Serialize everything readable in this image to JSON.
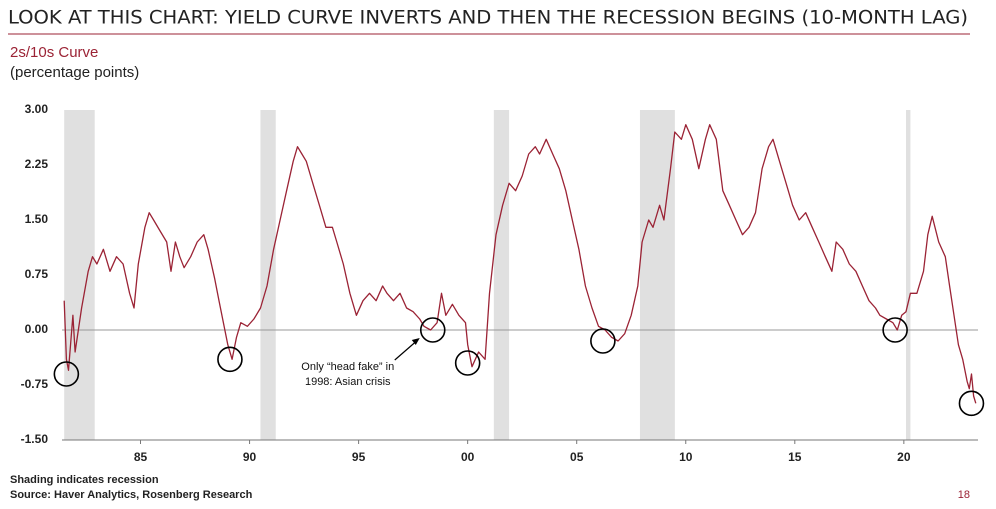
{
  "chart_data": {
    "type": "line",
    "title": "LOOK AT THIS CHART: YIELD CURVE INVERTS AND THEN THE RECESSION BEGINS (10-MONTH LAG)",
    "subtitle": "2s/10s Curve",
    "y_label": "(percentage points)",
    "x": [
      1981.5,
      1981.6,
      1981.7,
      1981.9,
      1982.0,
      1982.3,
      1982.6,
      1982.8,
      1983.0,
      1983.3,
      1983.6,
      1983.9,
      1984.2,
      1984.5,
      1984.7,
      1984.9,
      1985.2,
      1985.4,
      1985.6,
      1985.9,
      1986.2,
      1986.4,
      1986.6,
      1986.8,
      1987.0,
      1987.3,
      1987.6,
      1987.9,
      1988.1,
      1988.4,
      1988.6,
      1988.8,
      1989.0,
      1989.2,
      1989.4,
      1989.6,
      1989.9,
      1990.2,
      1990.5,
      1990.8,
      1991.1,
      1991.4,
      1991.7,
      1992.0,
      1992.2,
      1992.4,
      1992.6,
      1992.9,
      1993.2,
      1993.5,
      1993.8,
      1994.0,
      1994.3,
      1994.6,
      1994.9,
      1995.2,
      1995.5,
      1995.8,
      1996.1,
      1996.3,
      1996.6,
      1996.9,
      1997.2,
      1997.5,
      1997.8,
      1998.0,
      1998.3,
      1998.6,
      1998.8,
      1999.0,
      1999.3,
      1999.6,
      1999.9,
      2000.0,
      2000.2,
      2000.5,
      2000.8,
      2001.0,
      2001.3,
      2001.6,
      2001.9,
      2002.2,
      2002.5,
      2002.8,
      2003.1,
      2003.3,
      2003.6,
      2003.9,
      2004.2,
      2004.5,
      2004.8,
      2005.1,
      2005.4,
      2005.7,
      2006.0,
      2006.3,
      2006.6,
      2006.9,
      2007.2,
      2007.5,
      2007.8,
      2008.0,
      2008.3,
      2008.5,
      2008.8,
      2009.0,
      2009.3,
      2009.5,
      2009.8,
      2010.0,
      2010.3,
      2010.6,
      2010.9,
      2011.1,
      2011.4,
      2011.7,
      2012.0,
      2012.3,
      2012.6,
      2012.9,
      2013.2,
      2013.5,
      2013.8,
      2014.0,
      2014.3,
      2014.6,
      2014.9,
      2015.2,
      2015.5,
      2015.8,
      2016.1,
      2016.4,
      2016.7,
      2016.9,
      2017.2,
      2017.5,
      2017.8,
      2018.1,
      2018.4,
      2018.7,
      2018.9,
      2019.2,
      2019.5,
      2019.7,
      2019.9,
      2020.1,
      2020.3,
      2020.6,
      2020.9,
      2021.1,
      2021.3,
      2021.6,
      2021.9,
      2022.1,
      2022.3,
      2022.5,
      2022.7,
      2022.9,
      2023.0,
      2023.1,
      2023.2,
      2023.3
    ],
    "series": [
      {
        "name": "2s/10s Curve",
        "color": "#9b2335",
        "values": [
          0.4,
          -0.4,
          -0.55,
          0.2,
          -0.3,
          0.3,
          0.8,
          1.0,
          0.9,
          1.1,
          0.8,
          1.0,
          0.9,
          0.5,
          0.3,
          0.9,
          1.4,
          1.6,
          1.5,
          1.35,
          1.2,
          0.8,
          1.2,
          1.0,
          0.85,
          1.0,
          1.2,
          1.3,
          1.1,
          0.7,
          0.4,
          0.1,
          -0.2,
          -0.4,
          -0.1,
          0.1,
          0.05,
          0.15,
          0.3,
          0.6,
          1.1,
          1.5,
          1.9,
          2.3,
          2.5,
          2.4,
          2.3,
          2.0,
          1.7,
          1.4,
          1.4,
          1.2,
          0.9,
          0.5,
          0.2,
          0.4,
          0.5,
          0.4,
          0.6,
          0.5,
          0.4,
          0.5,
          0.3,
          0.25,
          0.15,
          0.05,
          0.0,
          0.1,
          0.5,
          0.2,
          0.35,
          0.2,
          0.1,
          -0.2,
          -0.5,
          -0.3,
          -0.4,
          0.5,
          1.3,
          1.7,
          2.0,
          1.9,
          2.1,
          2.4,
          2.5,
          2.4,
          2.6,
          2.4,
          2.2,
          1.9,
          1.5,
          1.1,
          0.6,
          0.3,
          0.05,
          0.0,
          -0.1,
          -0.15,
          -0.05,
          0.2,
          0.6,
          1.2,
          1.5,
          1.4,
          1.7,
          1.5,
          2.2,
          2.7,
          2.6,
          2.8,
          2.6,
          2.2,
          2.6,
          2.8,
          2.6,
          1.9,
          1.7,
          1.5,
          1.3,
          1.4,
          1.6,
          2.2,
          2.5,
          2.6,
          2.3,
          2.0,
          1.7,
          1.5,
          1.6,
          1.4,
          1.2,
          1.0,
          0.8,
          1.2,
          1.1,
          0.9,
          0.8,
          0.6,
          0.4,
          0.3,
          0.2,
          0.15,
          0.1,
          0.0,
          0.2,
          0.25,
          0.5,
          0.5,
          0.8,
          1.3,
          1.55,
          1.2,
          1.0,
          0.6,
          0.2,
          -0.2,
          -0.4,
          -0.7,
          -0.8,
          -0.6,
          -0.9,
          -1.0
        ]
      }
    ],
    "recessions": [
      [
        1981.5,
        1982.9
      ],
      [
        1990.5,
        1991.2
      ],
      [
        2001.2,
        2001.9
      ],
      [
        2007.9,
        2009.5
      ],
      [
        2020.1,
        2020.3
      ]
    ],
    "highlights": [
      {
        "x": 1981.6,
        "y": -0.6
      },
      {
        "x": 1989.1,
        "y": -0.4
      },
      {
        "x": 1998.4,
        "y": 0.0
      },
      {
        "x": 2000.0,
        "y": -0.45
      },
      {
        "x": 2006.2,
        "y": -0.15
      },
      {
        "x": 2019.6,
        "y": 0.0
      },
      {
        "x": 2023.1,
        "y": -1.0
      }
    ],
    "annotation": [
      "Only “head fake” in",
      "1998: Asian crisis"
    ],
    "xlim": [
      1981.4,
      2023.4
    ],
    "ylim": [
      -1.5,
      3.0
    ],
    "xticks": [
      {
        "value": 1985,
        "label": "85"
      },
      {
        "value": 1990,
        "label": "90"
      },
      {
        "value": 1995,
        "label": "95"
      },
      {
        "value": 2000,
        "label": "00"
      },
      {
        "value": 2005,
        "label": "05"
      },
      {
        "value": 2010,
        "label": "10"
      },
      {
        "value": 2015,
        "label": "15"
      },
      {
        "value": 2020,
        "label": "20"
      }
    ],
    "yticks": [
      {
        "value": 3.0,
        "label": "3.00"
      },
      {
        "value": 2.25,
        "label": "2.25"
      },
      {
        "value": 1.5,
        "label": "1.50"
      },
      {
        "value": 0.75,
        "label": "0.75"
      },
      {
        "value": 0.0,
        "label": "0.00"
      },
      {
        "value": -0.75,
        "label": "-0.75"
      },
      {
        "value": -1.5,
        "label": "-1.50"
      }
    ],
    "zero_line": true,
    "recession_color": "#e0e0e0",
    "footnote": "Shading indicates recession",
    "source": "Source: Haver Analytics, Rosenberg Research",
    "page_number": "18"
  }
}
